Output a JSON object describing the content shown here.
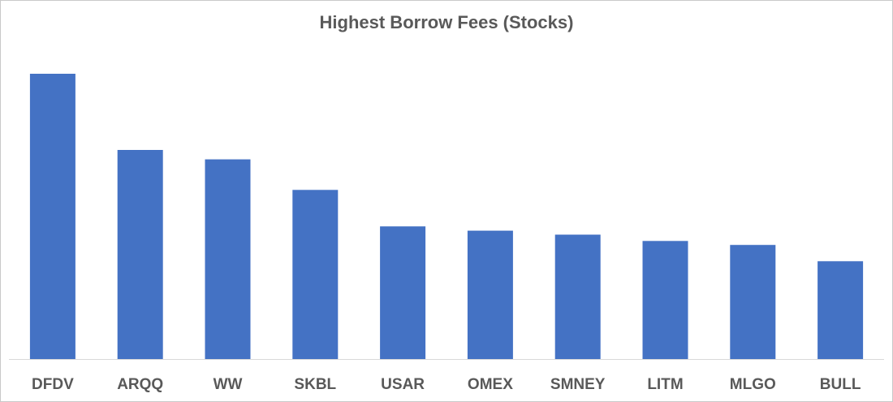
{
  "chart_data": {
    "type": "bar",
    "title": "Highest Borrow Fees (Stocks)",
    "xlabel": "",
    "ylabel": "",
    "categories": [
      "DFDV",
      "ARQQ",
      "WW",
      "SKBL",
      "USAR",
      "OMEX",
      "SMNEY",
      "LITM",
      "MLGO",
      "BULL"
    ],
    "values": [
      100,
      73.3,
      70.0,
      59.3,
      46.5,
      45.0,
      43.6,
      41.4,
      40.0,
      34.3
    ],
    "ylim": [
      0,
      100
    ],
    "grid": false,
    "legend": "none",
    "bar_color": "#4472C4",
    "axis_color": "#D9D9D9"
  }
}
